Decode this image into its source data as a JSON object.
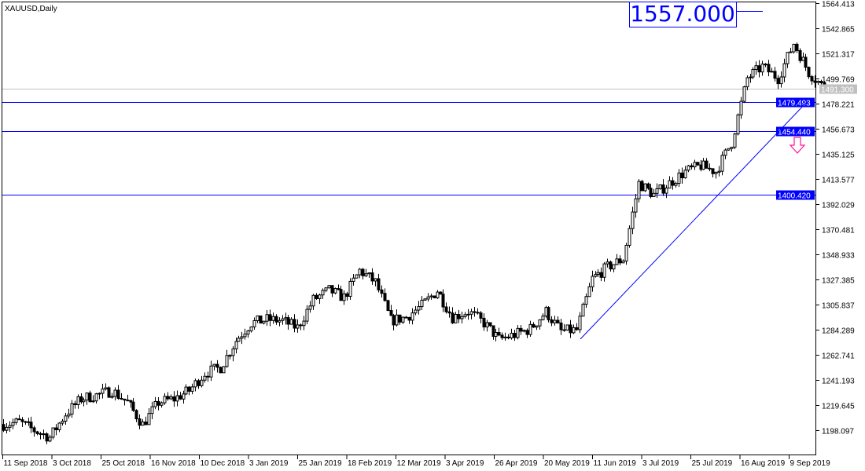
{
  "chart_data": {
    "type": "candlestick",
    "title": "XAUUSD,Daily",
    "symbol": "XAUUSD",
    "timeframe": "Daily",
    "ylim": [
      1198.097,
      1564.413
    ],
    "y_ticks": [
      "1564.413",
      "1542.865",
      "1521.317",
      "1499.769",
      "1478.221",
      "1456.673",
      "1435.125",
      "1413.577",
      "1392.029",
      "1370.481",
      "1348.933",
      "1327.385",
      "1305.837",
      "1284.289",
      "1262.741",
      "1241.193",
      "1219.645",
      "1198.097"
    ],
    "x_ticks": [
      "11 Sep 2018",
      "3 Oct 2018",
      "25 Oct 2018",
      "16 Nov 2018",
      "10 Dec 2018",
      "3 Jan 2019",
      "25 Jan 2019",
      "18 Feb 2019",
      "12 Mar 2019",
      "3 Apr 2019",
      "26 Apr 2019",
      "20 May 2019",
      "11 Jun 2019",
      "3 Jul 2019",
      "25 Jul 2019",
      "16 Aug 2019",
      "9 Sep 2019"
    ],
    "weekly_closes": [
      1203,
      1205,
      1198,
      1192,
      1212,
      1225,
      1228,
      1232,
      1222,
      1203,
      1222,
      1225,
      1232,
      1247,
      1252,
      1275,
      1290,
      1293,
      1292,
      1286,
      1310,
      1318,
      1312,
      1335,
      1325,
      1292,
      1295,
      1305,
      1318,
      1295,
      1300,
      1290,
      1276,
      1280,
      1285,
      1300,
      1283,
      1284,
      1328,
      1338,
      1345,
      1410,
      1400,
      1410,
      1420,
      1425,
      1420,
      1445,
      1500,
      1510,
      1500,
      1530,
      1505,
      1491.3
    ],
    "current_price": "1491.300",
    "horizontal_levels": [
      {
        "value": 1479.493,
        "label": "1479.493",
        "color": "#0000ff"
      },
      {
        "value": 1454.44,
        "label": "1454.440",
        "color": "#0000ff"
      },
      {
        "value": 1400.42,
        "label": "1400.420",
        "color": "#0000ff"
      }
    ],
    "price_label": "1557.000",
    "trendline": {
      "from": [
        "20 May 2019",
        1277
      ],
      "to": [
        "9 Sep 2019",
        1482
      ],
      "color": "#0000ff"
    },
    "arrow": {
      "direction": "down",
      "color": "#ff1493"
    },
    "candle_color": "#000000",
    "grid": false
  }
}
